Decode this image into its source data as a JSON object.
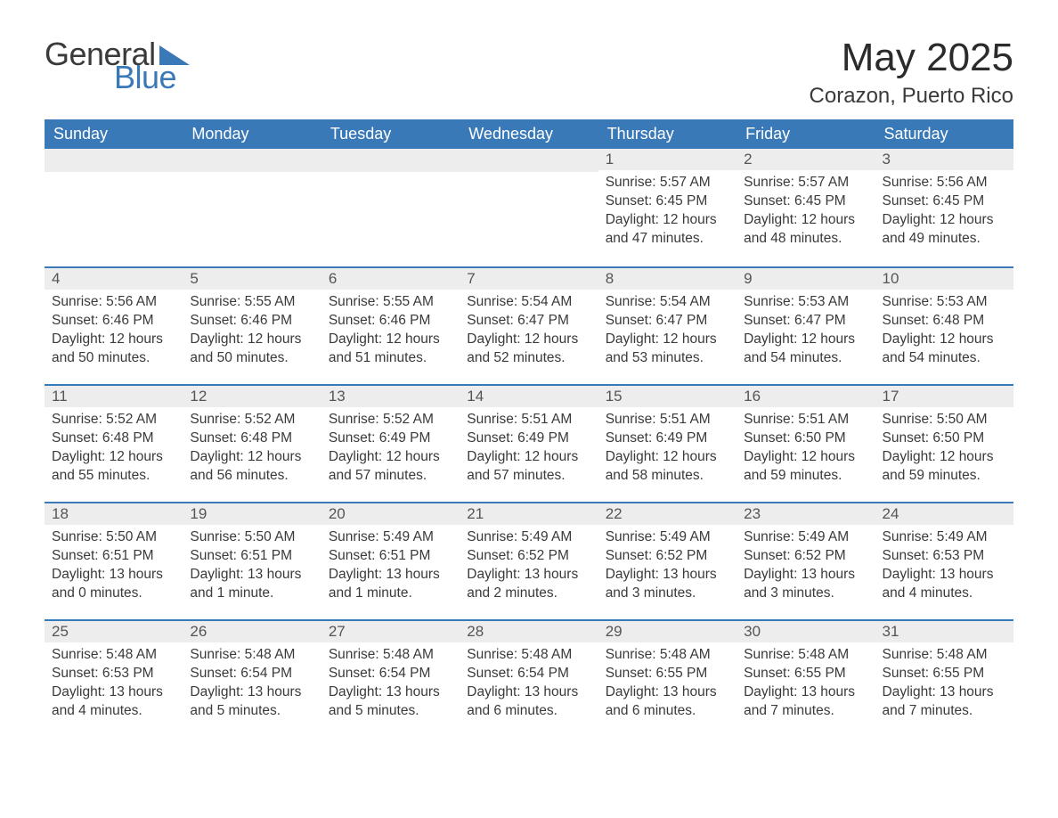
{
  "brand": {
    "line1": "General",
    "line2": "Blue",
    "text_color": "#3a3a3a",
    "accent_color": "#3a79b7"
  },
  "title": "May 2025",
  "location": "Corazon, Puerto Rico",
  "styling": {
    "header_bg": "#3a79b7",
    "header_text": "#ffffff",
    "daynum_bg": "#ededed",
    "daynum_border": "#3a79b7",
    "body_text": "#3a3a3a",
    "page_bg": "#ffffff",
    "title_fontsize": 44,
    "location_fontsize": 24,
    "header_fontsize": 18,
    "cell_fontsize": 15.5
  },
  "columns": [
    "Sunday",
    "Monday",
    "Tuesday",
    "Wednesday",
    "Thursday",
    "Friday",
    "Saturday"
  ],
  "weeks": [
    [
      {
        "empty": true
      },
      {
        "empty": true
      },
      {
        "empty": true
      },
      {
        "empty": true
      },
      {
        "day": "1",
        "sunrise": "Sunrise: 5:57 AM",
        "sunset": "Sunset: 6:45 PM",
        "daylight": "Daylight: 12 hours and 47 minutes."
      },
      {
        "day": "2",
        "sunrise": "Sunrise: 5:57 AM",
        "sunset": "Sunset: 6:45 PM",
        "daylight": "Daylight: 12 hours and 48 minutes."
      },
      {
        "day": "3",
        "sunrise": "Sunrise: 5:56 AM",
        "sunset": "Sunset: 6:45 PM",
        "daylight": "Daylight: 12 hours and 49 minutes."
      }
    ],
    [
      {
        "day": "4",
        "sunrise": "Sunrise: 5:56 AM",
        "sunset": "Sunset: 6:46 PM",
        "daylight": "Daylight: 12 hours and 50 minutes."
      },
      {
        "day": "5",
        "sunrise": "Sunrise: 5:55 AM",
        "sunset": "Sunset: 6:46 PM",
        "daylight": "Daylight: 12 hours and 50 minutes."
      },
      {
        "day": "6",
        "sunrise": "Sunrise: 5:55 AM",
        "sunset": "Sunset: 6:46 PM",
        "daylight": "Daylight: 12 hours and 51 minutes."
      },
      {
        "day": "7",
        "sunrise": "Sunrise: 5:54 AM",
        "sunset": "Sunset: 6:47 PM",
        "daylight": "Daylight: 12 hours and 52 minutes."
      },
      {
        "day": "8",
        "sunrise": "Sunrise: 5:54 AM",
        "sunset": "Sunset: 6:47 PM",
        "daylight": "Daylight: 12 hours and 53 minutes."
      },
      {
        "day": "9",
        "sunrise": "Sunrise: 5:53 AM",
        "sunset": "Sunset: 6:47 PM",
        "daylight": "Daylight: 12 hours and 54 minutes."
      },
      {
        "day": "10",
        "sunrise": "Sunrise: 5:53 AM",
        "sunset": "Sunset: 6:48 PM",
        "daylight": "Daylight: 12 hours and 54 minutes."
      }
    ],
    [
      {
        "day": "11",
        "sunrise": "Sunrise: 5:52 AM",
        "sunset": "Sunset: 6:48 PM",
        "daylight": "Daylight: 12 hours and 55 minutes."
      },
      {
        "day": "12",
        "sunrise": "Sunrise: 5:52 AM",
        "sunset": "Sunset: 6:48 PM",
        "daylight": "Daylight: 12 hours and 56 minutes."
      },
      {
        "day": "13",
        "sunrise": "Sunrise: 5:52 AM",
        "sunset": "Sunset: 6:49 PM",
        "daylight": "Daylight: 12 hours and 57 minutes."
      },
      {
        "day": "14",
        "sunrise": "Sunrise: 5:51 AM",
        "sunset": "Sunset: 6:49 PM",
        "daylight": "Daylight: 12 hours and 57 minutes."
      },
      {
        "day": "15",
        "sunrise": "Sunrise: 5:51 AM",
        "sunset": "Sunset: 6:49 PM",
        "daylight": "Daylight: 12 hours and 58 minutes."
      },
      {
        "day": "16",
        "sunrise": "Sunrise: 5:51 AM",
        "sunset": "Sunset: 6:50 PM",
        "daylight": "Daylight: 12 hours and 59 minutes."
      },
      {
        "day": "17",
        "sunrise": "Sunrise: 5:50 AM",
        "sunset": "Sunset: 6:50 PM",
        "daylight": "Daylight: 12 hours and 59 minutes."
      }
    ],
    [
      {
        "day": "18",
        "sunrise": "Sunrise: 5:50 AM",
        "sunset": "Sunset: 6:51 PM",
        "daylight": "Daylight: 13 hours and 0 minutes."
      },
      {
        "day": "19",
        "sunrise": "Sunrise: 5:50 AM",
        "sunset": "Sunset: 6:51 PM",
        "daylight": "Daylight: 13 hours and 1 minute."
      },
      {
        "day": "20",
        "sunrise": "Sunrise: 5:49 AM",
        "sunset": "Sunset: 6:51 PM",
        "daylight": "Daylight: 13 hours and 1 minute."
      },
      {
        "day": "21",
        "sunrise": "Sunrise: 5:49 AM",
        "sunset": "Sunset: 6:52 PM",
        "daylight": "Daylight: 13 hours and 2 minutes."
      },
      {
        "day": "22",
        "sunrise": "Sunrise: 5:49 AM",
        "sunset": "Sunset: 6:52 PM",
        "daylight": "Daylight: 13 hours and 3 minutes."
      },
      {
        "day": "23",
        "sunrise": "Sunrise: 5:49 AM",
        "sunset": "Sunset: 6:52 PM",
        "daylight": "Daylight: 13 hours and 3 minutes."
      },
      {
        "day": "24",
        "sunrise": "Sunrise: 5:49 AM",
        "sunset": "Sunset: 6:53 PM",
        "daylight": "Daylight: 13 hours and 4 minutes."
      }
    ],
    [
      {
        "day": "25",
        "sunrise": "Sunrise: 5:48 AM",
        "sunset": "Sunset: 6:53 PM",
        "daylight": "Daylight: 13 hours and 4 minutes."
      },
      {
        "day": "26",
        "sunrise": "Sunrise: 5:48 AM",
        "sunset": "Sunset: 6:54 PM",
        "daylight": "Daylight: 13 hours and 5 minutes."
      },
      {
        "day": "27",
        "sunrise": "Sunrise: 5:48 AM",
        "sunset": "Sunset: 6:54 PM",
        "daylight": "Daylight: 13 hours and 5 minutes."
      },
      {
        "day": "28",
        "sunrise": "Sunrise: 5:48 AM",
        "sunset": "Sunset: 6:54 PM",
        "daylight": "Daylight: 13 hours and 6 minutes."
      },
      {
        "day": "29",
        "sunrise": "Sunrise: 5:48 AM",
        "sunset": "Sunset: 6:55 PM",
        "daylight": "Daylight: 13 hours and 6 minutes."
      },
      {
        "day": "30",
        "sunrise": "Sunrise: 5:48 AM",
        "sunset": "Sunset: 6:55 PM",
        "daylight": "Daylight: 13 hours and 7 minutes."
      },
      {
        "day": "31",
        "sunrise": "Sunrise: 5:48 AM",
        "sunset": "Sunset: 6:55 PM",
        "daylight": "Daylight: 13 hours and 7 minutes."
      }
    ]
  ]
}
